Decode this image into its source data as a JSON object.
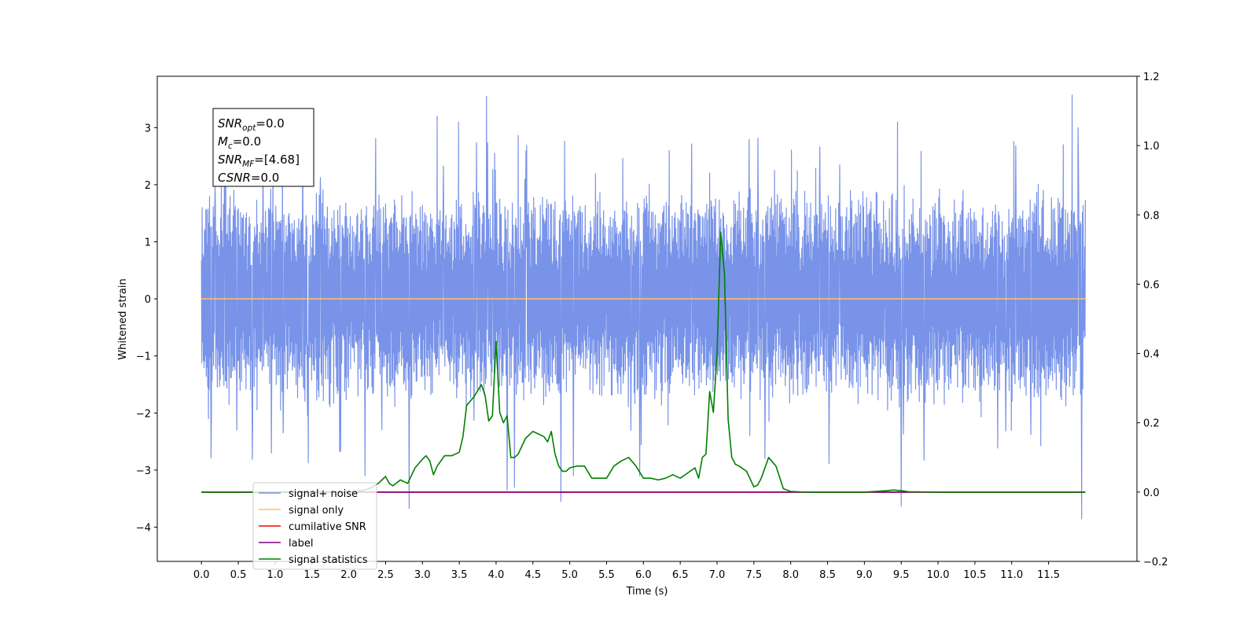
{
  "chart_data": {
    "type": "line",
    "xlabel": "Time (s)",
    "ylabel": "Whitened strain",
    "xlim": [
      -0.6,
      12.7
    ],
    "ylim_left": [
      -4.6,
      3.9
    ],
    "ylim_right": [
      -0.2,
      1.2
    ],
    "x_ticks": [
      "0.0",
      "0.5",
      "1.0",
      "1.5",
      "2.0",
      "2.5",
      "3.0",
      "3.5",
      "4.0",
      "4.5",
      "5.0",
      "5.5",
      "6.0",
      "6.5",
      "7.0",
      "7.5",
      "8.0",
      "8.5",
      "9.0",
      "9.5",
      "10.0",
      "10.5",
      "11.0",
      "11.5"
    ],
    "y_ticks_left": [
      -4,
      -3,
      -2,
      -1,
      0,
      1,
      2,
      3
    ],
    "y_ticks_left_labels": [
      "−4",
      "−3",
      "−2",
      "−1",
      "0",
      "1",
      "2",
      "3"
    ],
    "y_ticks_right": [
      -0.2,
      0.0,
      0.2,
      0.4,
      0.6,
      0.8,
      1.0,
      1.2
    ],
    "y_ticks_right_labels": [
      "−0.2",
      "0.0",
      "0.2",
      "0.4",
      "0.6",
      "0.8",
      "1.0",
      "1.2"
    ],
    "grid": false,
    "legend_placement": "lower-left",
    "annotation": {
      "lines": [
        {
          "base": "SNR",
          "sub": "opt",
          "rest": "=0.0"
        },
        {
          "base": "M",
          "sub": "c",
          "rest": "=0.0"
        },
        {
          "base": "SNR",
          "sub": "MF",
          "rest": "=[4.68]"
        },
        {
          "base": "CSNR",
          "sub": "",
          "rest": "=0.0"
        }
      ]
    },
    "series": [
      {
        "name": "signal+ noise",
        "color": "#7893e8",
        "axis": "left",
        "kind": "noise",
        "x_range": [
          0.0,
          12.0
        ],
        "typical_range": [
          -1.6,
          1.8
        ],
        "peaks": [
          [
            0.48,
            -2.3
          ],
          [
            0.95,
            -2.7
          ],
          [
            1.1,
            2.7
          ],
          [
            2.22,
            -3.1
          ],
          [
            2.82,
            -3.67
          ],
          [
            3.2,
            3.2
          ],
          [
            3.49,
            3.1
          ],
          [
            3.87,
            3.55
          ],
          [
            4.15,
            -3.35
          ],
          [
            4.25,
            -3.3
          ],
          [
            4.88,
            -3.55
          ],
          [
            5.05,
            -3.1
          ],
          [
            5.95,
            -3.1
          ],
          [
            6.35,
            2.6
          ],
          [
            7.65,
            -2.8
          ],
          [
            9.45,
            3.1
          ],
          [
            9.5,
            -3.63
          ],
          [
            11.7,
            2.7
          ],
          [
            11.82,
            3.57
          ],
          [
            11.95,
            -3.85
          ],
          [
            11.9,
            3.0
          ]
        ]
      },
      {
        "name": "signal only",
        "color": "#ffbe6f",
        "axis": "left",
        "x": [
          0.0,
          12.0
        ],
        "y": [
          0.0,
          0.0
        ]
      },
      {
        "name": "cumilative SNR",
        "color": "#ff0000",
        "axis": "right",
        "x": [
          0.0,
          12.0
        ],
        "y": [
          0.0,
          0.0
        ]
      },
      {
        "name": "label",
        "color": "#800080",
        "axis": "right",
        "x": [
          0.0,
          12.0
        ],
        "y": [
          0.0,
          0.0
        ]
      },
      {
        "name": "signal statistics",
        "color": "#008000",
        "axis": "right",
        "x": [
          0.0,
          1.5,
          2.0,
          2.2,
          2.3,
          2.4,
          2.5,
          2.55,
          2.6,
          2.7,
          2.8,
          2.9,
          3.0,
          3.05,
          3.1,
          3.15,
          3.2,
          3.3,
          3.4,
          3.5,
          3.55,
          3.6,
          3.7,
          3.8,
          3.85,
          3.9,
          3.95,
          4.0,
          4.05,
          4.1,
          4.15,
          4.2,
          4.25,
          4.3,
          4.4,
          4.5,
          4.6,
          4.65,
          4.7,
          4.75,
          4.8,
          4.85,
          4.9,
          4.95,
          5.0,
          5.1,
          5.2,
          5.3,
          5.4,
          5.5,
          5.6,
          5.7,
          5.8,
          5.9,
          6.0,
          6.1,
          6.2,
          6.3,
          6.4,
          6.5,
          6.6,
          6.7,
          6.75,
          6.8,
          6.85,
          6.9,
          6.95,
          7.0,
          7.05,
          7.1,
          7.15,
          7.2,
          7.25,
          7.3,
          7.4,
          7.5,
          7.55,
          7.6,
          7.7,
          7.8,
          7.9,
          8.0,
          8.2,
          9.0,
          9.3,
          9.4,
          9.5,
          9.6,
          10.0,
          12.0
        ],
        "y": [
          0.0,
          0.0,
          0.0,
          0.005,
          0.012,
          0.025,
          0.045,
          0.025,
          0.018,
          0.035,
          0.025,
          0.07,
          0.095,
          0.105,
          0.09,
          0.05,
          0.075,
          0.105,
          0.105,
          0.115,
          0.16,
          0.25,
          0.275,
          0.31,
          0.28,
          0.205,
          0.22,
          0.435,
          0.23,
          0.2,
          0.22,
          0.1,
          0.1,
          0.11,
          0.155,
          0.175,
          0.165,
          0.16,
          0.145,
          0.175,
          0.11,
          0.075,
          0.06,
          0.06,
          0.07,
          0.075,
          0.075,
          0.04,
          0.04,
          0.04,
          0.075,
          0.09,
          0.1,
          0.075,
          0.04,
          0.04,
          0.035,
          0.04,
          0.05,
          0.04,
          0.055,
          0.07,
          0.04,
          0.1,
          0.11,
          0.29,
          0.23,
          0.4,
          0.75,
          0.63,
          0.21,
          0.1,
          0.08,
          0.075,
          0.06,
          0.015,
          0.02,
          0.04,
          0.1,
          0.075,
          0.01,
          0.002,
          0.0,
          0.0,
          0.004,
          0.006,
          0.004,
          0.001,
          0.0,
          0.0
        ]
      }
    ]
  }
}
